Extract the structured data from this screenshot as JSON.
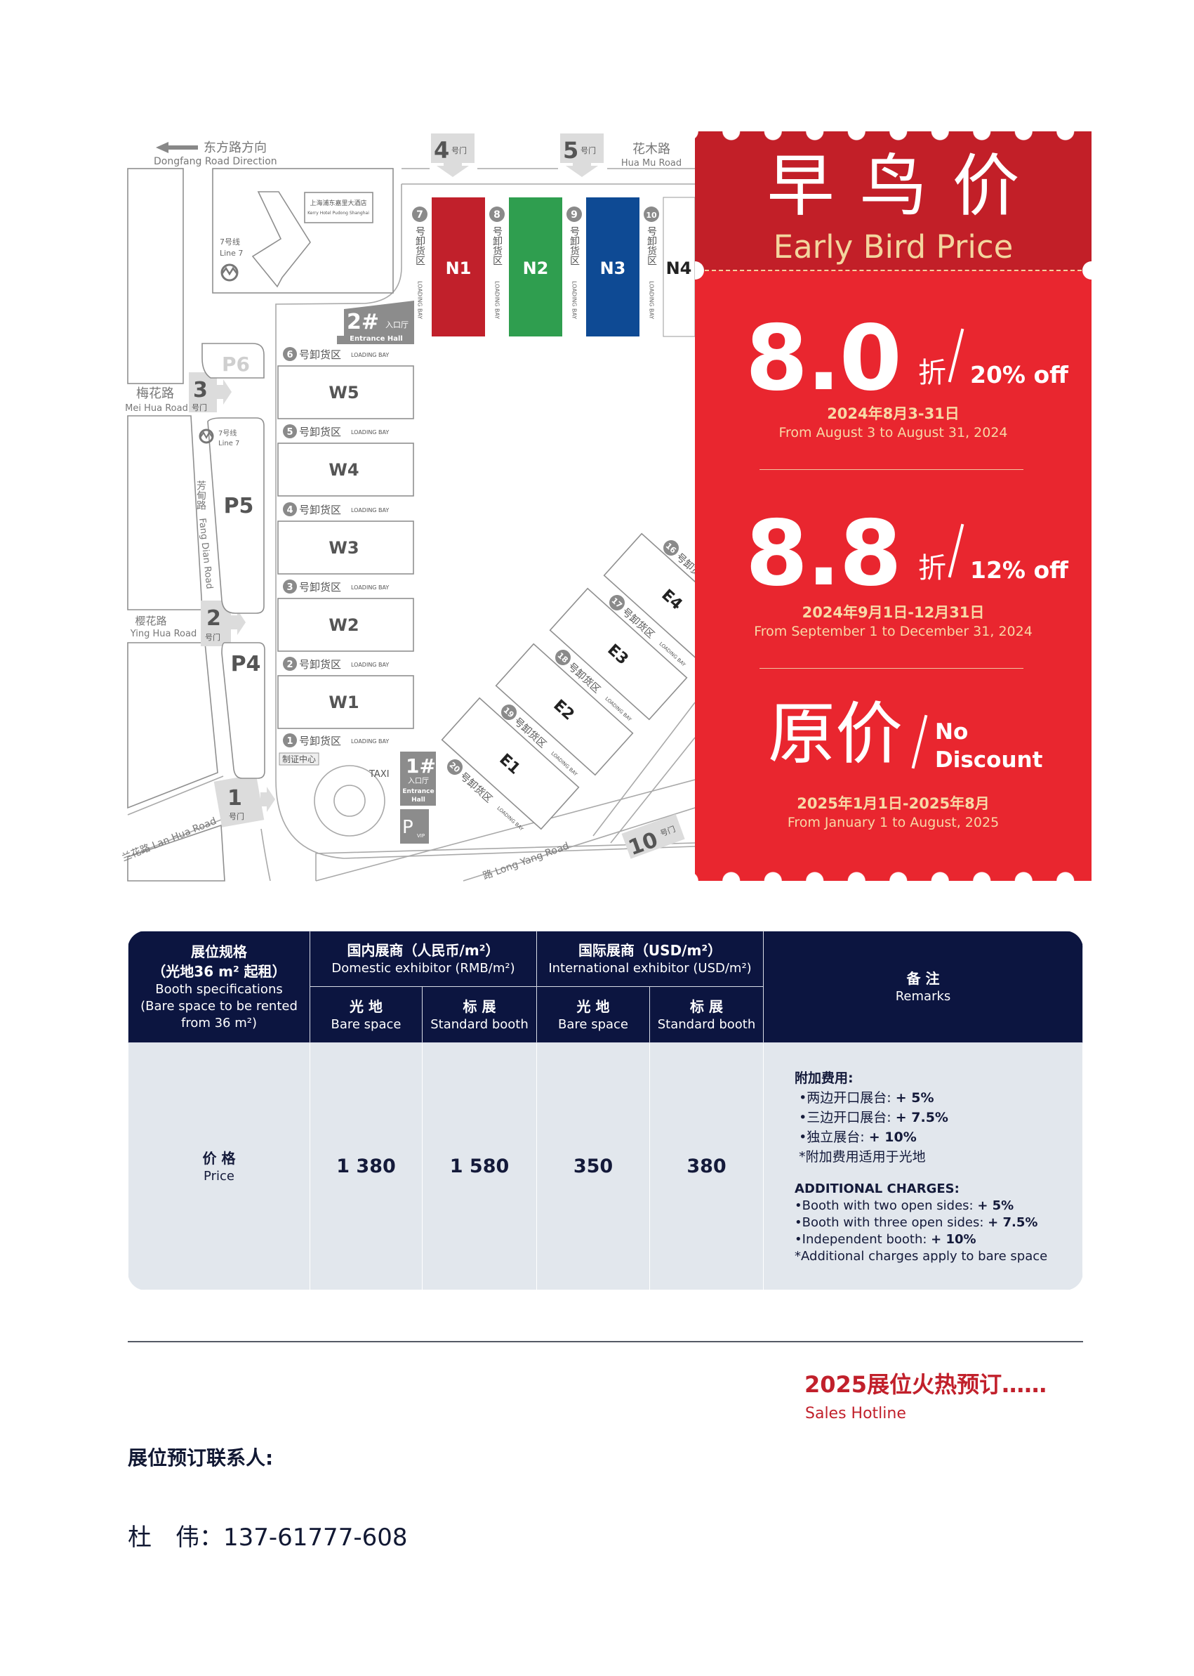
{
  "map": {
    "dongfang_cn": "东方路方向",
    "dongfang_en": "Dongfang Road Direction",
    "huamu_cn": "花木路",
    "huamu_en": "Hua Mu Road",
    "meihua_cn": "梅花路",
    "meihua_en": "Mei Hua Road",
    "yinghua_cn": "樱花路",
    "yinghua_en": "Ying Hua Road",
    "lanhua": "兰花路 Lan Hua Road",
    "fangdian_cn": "芳甸路",
    "fangdian_en": "Fang Dian Road",
    "longyang": "路 Long Yang Road",
    "gate_suffix": "号门",
    "gates": [
      "1",
      "2",
      "3",
      "4",
      "5",
      "10"
    ],
    "hotel_cn": "上海浦东嘉里大酒店",
    "hotel_en": "Kerry Hotel Pudong Shanghai",
    "metro_cn": "7号线",
    "metro_en": "Line 7",
    "entrance2_num": "2#",
    "entrance1_num": "1#",
    "entrance_cn": "入口厅",
    "entrance_en": "Entrance Hall",
    "entrance_en_1": "Entrance",
    "entrance_en_2": "Hall",
    "parking": [
      "P6",
      "P5",
      "P4"
    ],
    "vip_parking": "P",
    "vip_sub": "VIP",
    "cert_center": "制证中心",
    "taxi": "TAXI",
    "loading_cn": "号卸货区",
    "loading_en": "LOADING BAY",
    "north_halls": [
      {
        "name": "N1",
        "color": "#c1202b"
      },
      {
        "name": "N2",
        "color": "#2f9e4f"
      },
      {
        "name": "N3",
        "color": "#0e4a94"
      },
      {
        "name": "N4",
        "color": "#ffffff"
      }
    ],
    "north_bays": [
      "7",
      "8",
      "9",
      "10"
    ],
    "west_halls": [
      "W5",
      "W4",
      "W3",
      "W2",
      "W1"
    ],
    "west_bays": [
      "6",
      "5",
      "4",
      "3",
      "2",
      "1"
    ],
    "east_halls": [
      "E1",
      "E2",
      "E3",
      "E4"
    ],
    "east_bays": [
      "20",
      "19",
      "18",
      "17",
      "16"
    ]
  },
  "promo": {
    "title_cn": "早鸟价",
    "title_en": "Early Bird Price",
    "tiers": [
      {
        "rate": "8.0",
        "unit": "折",
        "off": "20% off",
        "date_cn": "2024年8月3-31日",
        "date_en": "From August 3 to August 31, 2024"
      },
      {
        "rate": "8.8",
        "unit": "折",
        "off": "12% off",
        "date_cn": "2024年9月1日-12月31日",
        "date_en": "From September 1 to December 31, 2024"
      },
      {
        "rate": "原价",
        "off_line1": "No",
        "off_line2": "Discount",
        "date_cn": "2025年1月1日-2025年8月",
        "date_en": "From January 1 to August, 2025"
      }
    ],
    "colors": {
      "top": "#c21f28",
      "main": "#e9262f",
      "accent_text": "#f8d9a6"
    }
  },
  "table": {
    "spec_cn_1": "展位规格",
    "spec_cn_2": "（光地36 m² 起租）",
    "spec_en_1": "Booth specifications",
    "spec_en_2": "(Bare space to be rented",
    "spec_en_3": "from 36 m²)",
    "domestic_cn": "国内展商（人民币/m²）",
    "domestic_en": "Domestic exhibitor (RMB/m²)",
    "intl_cn": "国际展商（USD/m²）",
    "intl_en": "International exhibitor (USD/m²)",
    "remarks_cn": "备 注",
    "remarks_en": "Remarks",
    "sub": [
      {
        "cn": "光 地",
        "en": "Bare space"
      },
      {
        "cn": "标 展",
        "en": "Standard booth"
      },
      {
        "cn": "光 地",
        "en": "Bare space"
      },
      {
        "cn": "标 展",
        "en": "Standard booth"
      }
    ],
    "row_cn": "价 格",
    "row_en": "Price",
    "values": [
      "1 380",
      "1 580",
      "350",
      "380"
    ],
    "remarks": {
      "cn_title": "附加费用:",
      "cn_items": [
        {
          "label": "•两边开口展台: ",
          "value": "+ 5%"
        },
        {
          "label": "•三边开口展台: ",
          "value": "+ 7.5%"
        },
        {
          "label": "•独立展台: ",
          "value": "+ 10%"
        }
      ],
      "cn_note": "*附加费用适用于光地",
      "en_title": "ADDITIONAL CHARGES:",
      "en_items": [
        {
          "label": "•Booth with two open sides: ",
          "value": "+ 5%"
        },
        {
          "label": "•Booth with three open sides: ",
          "value": "+ 7.5%"
        },
        {
          "label": "•Independent booth: ",
          "value": "+ 10%"
        }
      ],
      "en_note": "*Additional charges apply to bare space"
    },
    "colors": {
      "header": "#0c1540",
      "body": "#e2e7ed"
    }
  },
  "footer": {
    "hot_title": "2025展位火热预订……",
    "hot_sub": "Sales Hotline",
    "contact_label": "展位预订联系人:",
    "contact_line": "杜　伟：137-61777-608"
  }
}
